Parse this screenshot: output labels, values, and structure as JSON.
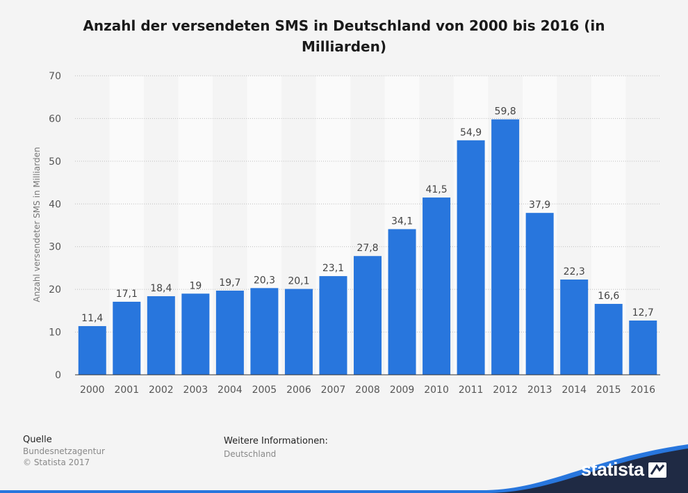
{
  "title": "Anzahl der versendeten SMS in Deutschland von 2000 bis 2016 (in Milliarden)",
  "chart_data": {
    "type": "bar",
    "title": "Anzahl der versendeten SMS in Deutschland von 2000 bis 2016 (in Milliarden)",
    "xlabel": "",
    "ylabel": "Anzahl versendeter SMS in Milliarden",
    "categories": [
      "2000",
      "2001",
      "2002",
      "2003",
      "2004",
      "2005",
      "2006",
      "2007",
      "2008",
      "2009",
      "2010",
      "2011",
      "2012",
      "2013",
      "2014",
      "2015",
      "2016"
    ],
    "values": [
      11.4,
      17.1,
      18.4,
      19,
      19.7,
      20.3,
      20.1,
      23.1,
      27.8,
      34.1,
      41.5,
      54.9,
      59.8,
      37.9,
      22.3,
      16.6,
      12.7
    ],
    "value_labels": [
      "11,4",
      "17,1",
      "18,4",
      "19",
      "19,7",
      "20,3",
      "20,1",
      "23,1",
      "27,8",
      "34,1",
      "41,5",
      "54,9",
      "59,8",
      "37,9",
      "22,3",
      "16,6",
      "12,7"
    ],
    "ylim": [
      0,
      70
    ],
    "yticks": [
      0,
      10,
      20,
      30,
      40,
      50,
      60,
      70
    ],
    "grid": true,
    "bar_color": "#2876dd"
  },
  "footer": {
    "source_heading": "Quelle",
    "source_name": "Bundesnetzagentur",
    "copyright": "© Statista 2017",
    "info_heading": "Weitere Informationen:",
    "info_region": "Deutschland"
  },
  "brand": {
    "name": "statista",
    "color": "#1f2a44",
    "accent": "#2876dd"
  }
}
